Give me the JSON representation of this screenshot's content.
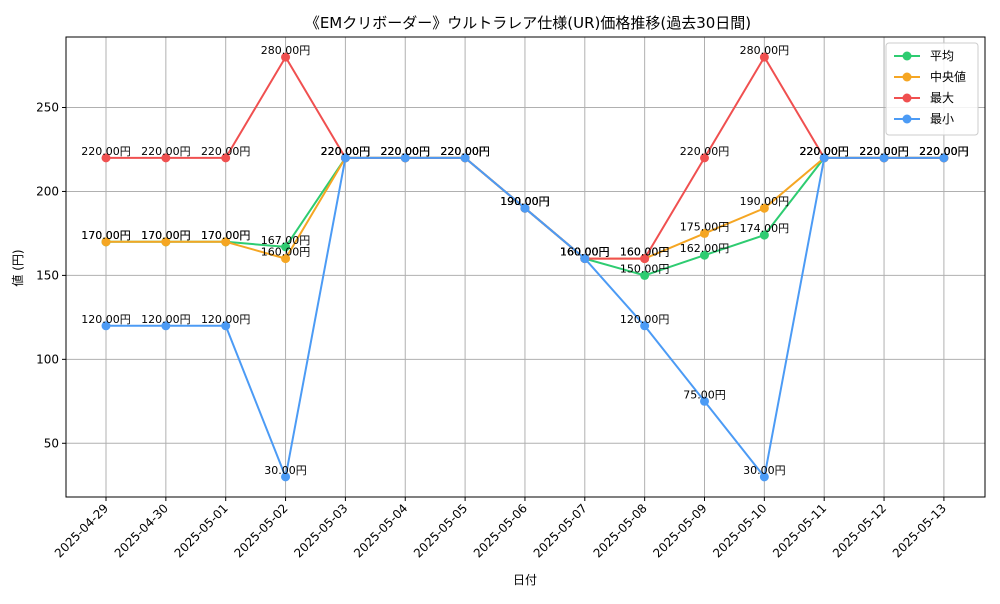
{
  "chart_data": {
    "type": "line",
    "title": "《EMクリボーダー》ウルトラレア仕様(UR)価格推移(過去30日間)",
    "xlabel": "日付",
    "ylabel": "値 (円)",
    "ylim": [
      18,
      292
    ],
    "yticks": [
      50,
      100,
      150,
      200,
      250
    ],
    "grid": true,
    "legend_position": "top-right",
    "value_suffix": "円",
    "categories": [
      "2025-04-29",
      "2025-04-30",
      "2025-05-01",
      "2025-05-02",
      "2025-05-03",
      "2025-05-04",
      "2025-05-05",
      "2025-05-06",
      "2025-05-07",
      "2025-05-08",
      "2025-05-09",
      "2025-05-10",
      "2025-05-11",
      "2025-05-12",
      "2025-05-13"
    ],
    "series": [
      {
        "name": "平均",
        "color": "#2ecc71",
        "values": [
          170,
          170,
          170,
          167,
          220,
          220,
          220,
          190,
          160,
          150,
          162,
          174,
          220,
          220,
          220
        ]
      },
      {
        "name": "中央値",
        "color": "#f5a623",
        "values": [
          170,
          170,
          170,
          160,
          220,
          220,
          220,
          190,
          160,
          160,
          175,
          190,
          220,
          220,
          220
        ]
      },
      {
        "name": "最大",
        "color": "#f05050",
        "values": [
          220,
          220,
          220,
          280,
          220,
          220,
          220,
          190,
          160,
          160,
          220,
          280,
          220,
          220,
          220
        ]
      },
      {
        "name": "最小",
        "color": "#4c9bf5",
        "values": [
          120,
          120,
          120,
          30,
          220,
          220,
          220,
          190,
          160,
          120,
          75,
          30,
          220,
          220,
          220
        ]
      }
    ]
  }
}
